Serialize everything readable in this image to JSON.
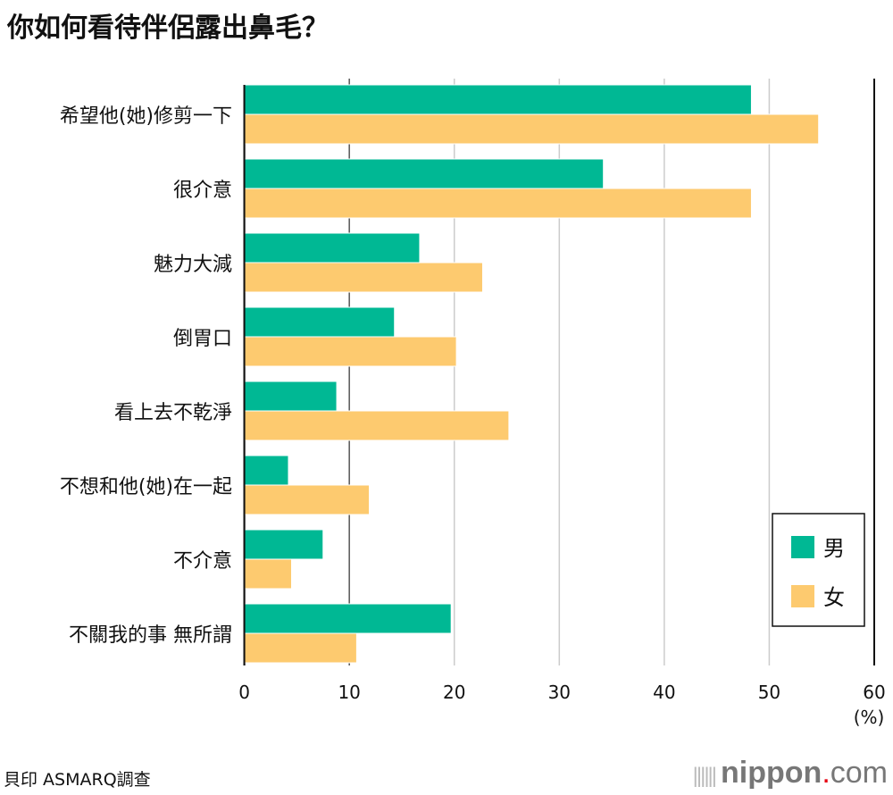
{
  "title": "你如何看待伴侶露出鼻毛？",
  "source": "貝印 ASMARQ調查",
  "logo": {
    "main": "nippon",
    "dot": ".",
    "tld": "com"
  },
  "chart_data": {
    "type": "bar",
    "orientation": "horizontal",
    "title": "你如何看待伴侶露出鼻毛？",
    "categories": [
      "希望他(她)修剪一下",
      "很介意",
      "魅力大減",
      "倒胃口",
      "看上去不乾淨",
      "不想和他(她)在一起",
      "不介意",
      "不關我的事 無所謂"
    ],
    "series": [
      {
        "name": "男",
        "color": "#00b894",
        "values": [
          48.3,
          34.2,
          16.7,
          14.3,
          8.8,
          4.2,
          7.5,
          19.7
        ]
      },
      {
        "name": "女",
        "color": "#fdca6f",
        "values": [
          54.7,
          48.3,
          22.7,
          20.2,
          25.2,
          11.9,
          4.5,
          10.7
        ]
      }
    ],
    "xlim": [
      0,
      60
    ],
    "ticks": [
      "0",
      "10",
      "20",
      "30",
      "40",
      "50",
      "60"
    ],
    "unit": "(%)",
    "grid": true,
    "legend": "bottom-right"
  }
}
